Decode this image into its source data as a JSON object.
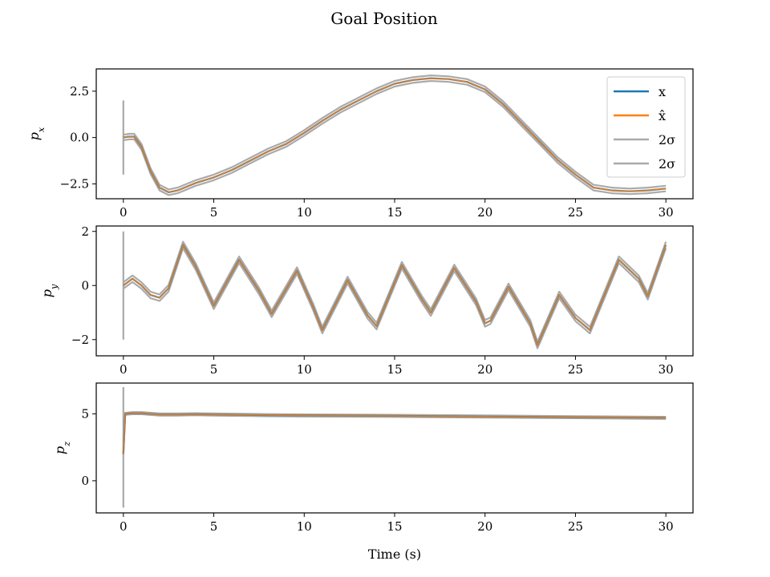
{
  "title": "Goal Position",
  "xlabel": "Time (s)",
  "colors": {
    "x": "#1f77b4",
    "xhat": "#ff7f0e",
    "sigma": "#aaaaaa"
  },
  "legend": [
    "x",
    "x̂",
    "2σ",
    "2σ"
  ],
  "chart_data": [
    {
      "type": "line",
      "ylabel": "p_x",
      "ylabel_base": "p",
      "ylabel_sub": "x",
      "xlim": [
        -1.5,
        31.5
      ],
      "ylim": [
        -3.3,
        3.7
      ],
      "xticks": [
        0,
        5,
        10,
        15,
        20,
        25,
        30
      ],
      "yticks": [
        -2.5,
        0.0,
        2.5
      ],
      "ytick_labels": [
        "−2.5",
        "0.0",
        "2.5"
      ],
      "sigma_band": 0.15,
      "initial_sigma": [
        -2.0,
        2.0
      ],
      "series": [
        {
          "name": "x",
          "x": [
            0,
            0.3,
            0.6,
            1,
            1.5,
            2,
            2.5,
            3,
            4,
            5,
            6,
            7,
            8,
            9,
            10,
            11,
            12,
            13,
            14,
            15,
            16,
            17,
            18,
            19,
            20,
            21,
            22,
            23,
            24,
            25,
            26,
            27,
            28,
            29,
            30
          ],
          "y": [
            0.0,
            0.05,
            0.05,
            -0.5,
            -1.8,
            -2.7,
            -2.95,
            -2.85,
            -2.45,
            -2.15,
            -1.75,
            -1.25,
            -0.75,
            -0.35,
            0.25,
            0.9,
            1.5,
            2.0,
            2.5,
            2.9,
            3.1,
            3.2,
            3.15,
            3.0,
            2.6,
            1.8,
            0.8,
            -0.2,
            -1.2,
            -2.0,
            -2.7,
            -2.85,
            -2.9,
            -2.85,
            -2.75
          ]
        }
      ]
    },
    {
      "type": "line",
      "ylabel": "p_y",
      "ylabel_base": "p",
      "ylabel_sub": "y",
      "xlim": [
        -1.5,
        31.5
      ],
      "ylim": [
        -2.6,
        2.2
      ],
      "xticks": [
        0,
        5,
        10,
        15,
        20,
        25,
        30
      ],
      "yticks": [
        -2,
        0,
        2
      ],
      "ytick_labels": [
        "−2",
        "0",
        "2"
      ],
      "sigma_band": 0.12,
      "initial_sigma": [
        -2.0,
        2.0
      ],
      "series": [
        {
          "name": "x",
          "x": [
            0,
            0.5,
            1,
            1.5,
            2,
            2.5,
            3.3,
            4,
            5,
            6.4,
            7.5,
            8.2,
            9.6,
            10.5,
            11,
            12.4,
            13.5,
            14,
            15.4,
            16.5,
            17,
            18.3,
            19.5,
            20,
            20.3,
            21.3,
            22.5,
            22.9,
            24.1,
            25,
            25.8,
            27.4,
            28.5,
            29,
            30
          ],
          "y": [
            0.0,
            0.25,
            0.0,
            -0.35,
            -0.45,
            -0.1,
            1.5,
            0.7,
            -0.75,
            0.95,
            -0.2,
            -1.05,
            0.55,
            -0.8,
            -1.65,
            0.2,
            -1.1,
            -1.5,
            0.75,
            -0.5,
            -1.0,
            0.65,
            -0.6,
            -1.4,
            -1.3,
            -0.05,
            -1.4,
            -2.2,
            -0.35,
            -1.2,
            -1.65,
            0.95,
            0.25,
            -0.4,
            1.5
          ]
        }
      ]
    },
    {
      "type": "line",
      "ylabel": "p_z",
      "ylabel_base": "p",
      "ylabel_sub": "z",
      "xlim": [
        -1.5,
        31.5
      ],
      "ylim": [
        -2.4,
        7.3
      ],
      "xticks": [
        0,
        5,
        10,
        15,
        20,
        25,
        30
      ],
      "yticks": [
        0,
        5
      ],
      "ytick_labels": [
        "0",
        "5"
      ],
      "sigma_band": 0.08,
      "initial_sigma": [
        -2.0,
        7.0
      ],
      "series": [
        {
          "name": "x",
          "x": [
            0,
            0.1,
            0.5,
            1,
            2,
            3,
            4,
            5,
            8,
            10,
            15,
            20,
            25,
            30
          ],
          "y": [
            2.0,
            5.0,
            5.05,
            5.05,
            4.95,
            4.95,
            4.97,
            4.95,
            4.9,
            4.88,
            4.85,
            4.8,
            4.75,
            4.7
          ]
        }
      ]
    }
  ]
}
